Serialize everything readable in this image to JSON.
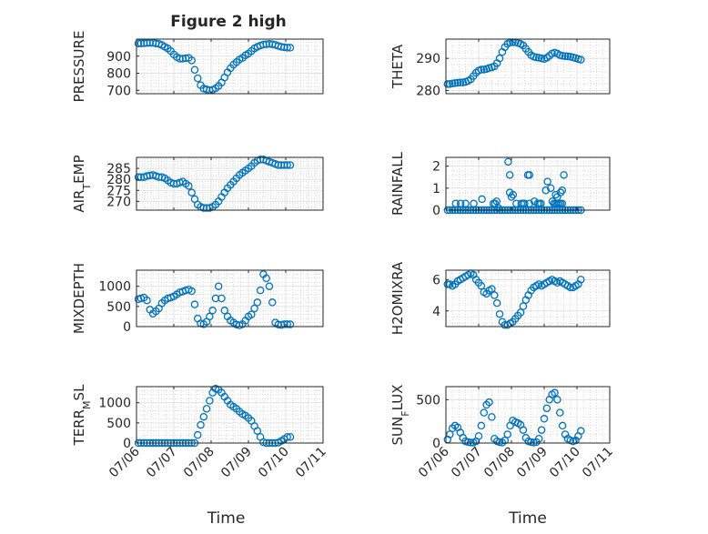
{
  "figure": {
    "title": "Figure 2 high"
  },
  "chart_data": [
    {
      "type": "scatter",
      "title": "Figure 2 high",
      "ylabel": "PRESSURE",
      "ylim": [
        680,
        1000
      ],
      "yticks": [
        700,
        800,
        900
      ],
      "grid": true,
      "minor_grid": true,
      "marker": "open-circle",
      "color": "#0072BD",
      "series": [
        {
          "x": [
            0.05,
            0.12,
            0.2,
            0.28,
            0.36,
            0.44,
            0.52,
            0.6,
            0.68,
            0.76,
            0.84,
            0.92,
            1.0,
            1.08,
            1.16,
            1.24,
            1.32,
            1.4,
            1.48,
            1.56,
            1.64,
            1.72,
            1.8,
            1.88,
            1.96,
            2.04,
            2.12,
            2.2,
            2.28,
            2.36,
            2.44,
            2.52,
            2.6,
            2.68,
            2.76,
            2.84,
            2.92,
            3.0,
            3.08,
            3.16,
            3.24,
            3.32,
            3.4,
            3.48,
            3.56,
            3.64,
            3.72,
            3.8,
            3.88,
            3.96,
            4.04,
            4.12
          ],
          "y": [
            975,
            975,
            976,
            977,
            978,
            978,
            975,
            972,
            965,
            955,
            945,
            930,
            910,
            895,
            885,
            885,
            888,
            890,
            875,
            820,
            770,
            730,
            710,
            705,
            700,
            703,
            712,
            725,
            745,
            775,
            805,
            830,
            850,
            865,
            880,
            890,
            905,
            915,
            930,
            945,
            955,
            962,
            968,
            970,
            972,
            970,
            966,
            960,
            955,
            952,
            950,
            950
          ]
        }
      ]
    },
    {
      "type": "scatter",
      "ylabel": "THETA",
      "ylim": [
        279,
        296
      ],
      "yticks": [
        280,
        290
      ],
      "grid": true,
      "minor_grid": true,
      "marker": "open-circle",
      "color": "#0072BD",
      "series": [
        {
          "x": [
            0.05,
            0.12,
            0.2,
            0.28,
            0.36,
            0.44,
            0.52,
            0.6,
            0.68,
            0.76,
            0.84,
            0.92,
            1.0,
            1.08,
            1.16,
            1.24,
            1.32,
            1.4,
            1.48,
            1.56,
            1.64,
            1.72,
            1.8,
            1.88,
            1.96,
            2.04,
            2.12,
            2.2,
            2.28,
            2.36,
            2.44,
            2.52,
            2.6,
            2.68,
            2.76,
            2.84,
            2.92,
            3.0,
            3.08,
            3.16,
            3.24,
            3.32,
            3.4,
            3.48,
            3.56,
            3.64,
            3.72,
            3.8,
            3.88,
            3.96,
            4.04,
            4.12
          ],
          "y": [
            282,
            282,
            282.2,
            282.3,
            282.4,
            282.5,
            282.5,
            282.7,
            283,
            283.5,
            284.5,
            285.5,
            286.2,
            286.5,
            286.5,
            286.7,
            287,
            287.2,
            287.5,
            288.5,
            290,
            292,
            293.5,
            294.5,
            295,
            295,
            295,
            294.8,
            294.5,
            294,
            293,
            292,
            291,
            290.5,
            290.3,
            290.2,
            290,
            289.8,
            290.2,
            290.8,
            291.5,
            291.8,
            291.5,
            291,
            290.8,
            290.7,
            290.6,
            290.5,
            290.3,
            290.1,
            289.8,
            289.6
          ]
        }
      ]
    },
    {
      "type": "scatter",
      "ylabel": "AIR_TEMP",
      "ylim": [
        266,
        290
      ],
      "yticks": [
        270,
        275,
        280,
        285
      ],
      "grid": true,
      "minor_grid": true,
      "marker": "open-circle",
      "color": "#0072BD",
      "series": [
        {
          "x": [
            0.05,
            0.12,
            0.2,
            0.28,
            0.36,
            0.44,
            0.52,
            0.6,
            0.68,
            0.76,
            0.84,
            0.92,
            1.0,
            1.08,
            1.16,
            1.24,
            1.32,
            1.4,
            1.48,
            1.56,
            1.64,
            1.72,
            1.8,
            1.88,
            1.96,
            2.04,
            2.12,
            2.2,
            2.28,
            2.36,
            2.44,
            2.52,
            2.6,
            2.68,
            2.76,
            2.84,
            2.92,
            3.0,
            3.08,
            3.16,
            3.24,
            3.32,
            3.4,
            3.48,
            3.56,
            3.64,
            3.72,
            3.8,
            3.88,
            3.96,
            4.04,
            4.12
          ],
          "y": [
            281,
            281,
            281,
            281.5,
            281.8,
            282,
            281.5,
            281,
            281,
            280.5,
            279.5,
            278.5,
            278,
            278,
            278.5,
            279,
            278,
            277,
            274,
            271,
            268.5,
            267.5,
            267,
            267,
            267,
            267.5,
            268.5,
            270,
            272,
            274,
            276,
            277.5,
            279,
            280.5,
            282,
            283,
            284,
            285,
            286,
            287.5,
            288.5,
            289,
            289,
            288.5,
            288,
            287.5,
            287,
            286.5,
            286.5,
            286.5,
            286.5,
            286.5
          ]
        }
      ]
    },
    {
      "type": "scatter",
      "ylabel": "RAINFALL",
      "ylim": [
        0,
        2.4
      ],
      "yticks": [
        0,
        1,
        2
      ],
      "grid": true,
      "minor_grid": true,
      "marker": "open-circle",
      "color": "#0072BD",
      "series": [
        {
          "x": [
            0.05,
            0.12,
            0.2,
            0.28,
            0.36,
            0.44,
            0.52,
            0.6,
            0.68,
            0.76,
            0.84,
            0.92,
            1.0,
            1.08,
            1.16,
            1.24,
            1.32,
            1.4,
            1.48,
            1.56,
            1.64,
            1.72,
            1.8,
            1.88,
            1.96,
            2.04,
            2.12,
            2.2,
            2.28,
            2.36,
            2.44,
            2.52,
            2.6,
            2.68,
            2.76,
            2.84,
            2.92,
            3.0,
            3.08,
            3.16,
            3.24,
            3.32,
            3.4,
            3.48,
            3.56,
            3.64,
            3.72,
            3.8,
            3.88,
            3.96,
            4.04,
            4.12,
            1.9,
            1.95,
            2.0,
            2.5,
            2.55,
            3.05,
            3.1,
            3.2,
            3.35,
            3.4,
            3.45,
            3.5,
            3.55,
            3.6,
            0.3,
            0.45,
            0.6,
            0.85,
            1.1,
            1.45,
            1.5,
            1.55,
            1.6,
            1.95,
            2.05,
            2.15,
            2.3,
            2.35,
            2.4,
            2.55,
            2.7,
            2.8,
            2.85,
            2.9,
            3.25,
            3.3,
            3.35,
            3.4,
            3.5,
            3.55
          ],
          "y": [
            0,
            0,
            0,
            0,
            0,
            0,
            0,
            0,
            0,
            0,
            0,
            0,
            0,
            0,
            0,
            0,
            0,
            0,
            0,
            0,
            0,
            0,
            0,
            0,
            0,
            0,
            0,
            0,
            0,
            0,
            0,
            0,
            0,
            0,
            0,
            0,
            0,
            0,
            0,
            0,
            0,
            0,
            0,
            0,
            0,
            0,
            0,
            0,
            0,
            0,
            0,
            0,
            2.2,
            1.6,
            0.6,
            1.6,
            1.6,
            0.9,
            1.3,
            1.0,
            0.7,
            0.6,
            0.3,
            0.8,
            0.9,
            1.6,
            0.3,
            0.3,
            0.3,
            0.3,
            0.5,
            0.3,
            0.3,
            0.4,
            0.1,
            0.8,
            0.7,
            0.3,
            0.3,
            0.3,
            0.3,
            0.3,
            0.4,
            0.3,
            0.3,
            0.3,
            0.4,
            0.3,
            0.3,
            0.3,
            0.3,
            0.3
          ]
        }
      ]
    },
    {
      "type": "scatter",
      "ylabel": "MIXDEPTH",
      "ylim": [
        0,
        1400
      ],
      "yticks": [
        0,
        500,
        1000
      ],
      "grid": true,
      "minor_grid": true,
      "marker": "open-circle",
      "color": "#0072BD",
      "series": [
        {
          "x": [
            0.05,
            0.12,
            0.2,
            0.28,
            0.36,
            0.44,
            0.52,
            0.6,
            0.68,
            0.76,
            0.84,
            0.92,
            1.0,
            1.08,
            1.16,
            1.24,
            1.32,
            1.4,
            1.48,
            1.56,
            1.64,
            1.72,
            1.8,
            1.88,
            1.96,
            2.04,
            2.12,
            2.2,
            2.28,
            2.36,
            2.44,
            2.52,
            2.6,
            2.68,
            2.76,
            2.84,
            2.92,
            3.0,
            3.08,
            3.16,
            3.24,
            3.32,
            3.4,
            3.48,
            3.56,
            3.64,
            3.72,
            3.8,
            3.88,
            3.96,
            4.04,
            4.12
          ],
          "y": [
            680,
            700,
            720,
            650,
            420,
            320,
            380,
            450,
            580,
            650,
            700,
            720,
            750,
            800,
            850,
            870,
            900,
            920,
            880,
            550,
            200,
            80,
            60,
            120,
            250,
            400,
            700,
            1000,
            700,
            400,
            250,
            150,
            100,
            50,
            30,
            60,
            150,
            250,
            300,
            450,
            600,
            900,
            1300,
            1200,
            1000,
            600,
            100,
            50,
            40,
            60,
            60,
            55
          ]
        }
      ]
    },
    {
      "type": "scatter",
      "ylabel": "H2OMIXRA",
      "ylim": [
        3,
        6.6
      ],
      "yticks": [
        4,
        6
      ],
      "grid": true,
      "minor_grid": true,
      "marker": "open-circle",
      "color": "#0072BD",
      "series": [
        {
          "x": [
            0.05,
            0.12,
            0.2,
            0.28,
            0.36,
            0.44,
            0.52,
            0.6,
            0.68,
            0.76,
            0.84,
            0.92,
            1.0,
            1.08,
            1.16,
            1.24,
            1.32,
            1.4,
            1.48,
            1.56,
            1.64,
            1.72,
            1.8,
            1.88,
            1.96,
            2.04,
            2.12,
            2.2,
            2.28,
            2.36,
            2.44,
            2.52,
            2.6,
            2.68,
            2.76,
            2.84,
            2.92,
            3.0,
            3.08,
            3.16,
            3.24,
            3.32,
            3.4,
            3.48,
            3.56,
            3.64,
            3.72,
            3.8,
            3.88,
            3.96,
            4.04,
            4.12
          ],
          "y": [
            5.7,
            5.7,
            5.6,
            5.7,
            5.9,
            6.0,
            6.1,
            6.2,
            6.3,
            6.4,
            6.3,
            6.0,
            5.8,
            5.6,
            5.2,
            5.1,
            5.3,
            5.4,
            5.0,
            4.5,
            3.8,
            3.3,
            3.1,
            3.1,
            3.2,
            3.3,
            3.5,
            3.7,
            3.9,
            4.3,
            4.7,
            5.0,
            5.3,
            5.5,
            5.6,
            5.7,
            5.6,
            5.7,
            5.8,
            5.9,
            6.0,
            5.9,
            5.8,
            5.9,
            5.8,
            5.7,
            5.6,
            5.5,
            5.5,
            5.6,
            5.7,
            6.0
          ]
        }
      ]
    },
    {
      "type": "scatter",
      "ylabel": "TERR_MSL",
      "xlabel": "Time",
      "xticklabels": [
        "07/06",
        "07/07",
        "07/08",
        "07/09",
        "07/10",
        "07/11"
      ],
      "xlim": [
        0,
        5
      ],
      "ylim": [
        0,
        1400
      ],
      "yticks": [
        0,
        500,
        1000
      ],
      "grid": true,
      "minor_grid": true,
      "marker": "open-circle",
      "color": "#0072BD",
      "series": [
        {
          "x": [
            0.05,
            0.12,
            0.2,
            0.28,
            0.36,
            0.44,
            0.52,
            0.6,
            0.68,
            0.76,
            0.84,
            0.92,
            1.0,
            1.08,
            1.16,
            1.24,
            1.32,
            1.4,
            1.48,
            1.56,
            1.64,
            1.72,
            1.8,
            1.88,
            1.96,
            2.04,
            2.12,
            2.2,
            2.28,
            2.36,
            2.44,
            2.52,
            2.6,
            2.68,
            2.76,
            2.84,
            2.92,
            3.0,
            3.08,
            3.16,
            3.24,
            3.32,
            3.4,
            3.48,
            3.56,
            3.64,
            3.72,
            3.8,
            3.88,
            3.96,
            4.04,
            4.12
          ],
          "y": [
            0,
            0,
            0,
            0,
            0,
            0,
            0,
            0,
            0,
            0,
            0,
            0,
            0,
            0,
            0,
            0,
            0,
            0,
            0,
            0,
            200,
            450,
            650,
            850,
            1050,
            1250,
            1350,
            1320,
            1250,
            1150,
            1050,
            950,
            900,
            850,
            780,
            720,
            680,
            620,
            550,
            420,
            300,
            150,
            20,
            0,
            0,
            0,
            0,
            10,
            50,
            100,
            150,
            150
          ]
        }
      ]
    },
    {
      "type": "scatter",
      "ylabel": "SUN_FLUX",
      "xlabel": "Time",
      "xticklabels": [
        "07/06",
        "07/07",
        "07/08",
        "07/09",
        "07/10",
        "07/11"
      ],
      "xlim": [
        0,
        5
      ],
      "ylim": [
        0,
        650
      ],
      "yticks": [
        0,
        500
      ],
      "grid": true,
      "minor_grid": true,
      "marker": "open-circle",
      "color": "#0072BD",
      "series": [
        {
          "x": [
            0.05,
            0.12,
            0.2,
            0.28,
            0.36,
            0.44,
            0.52,
            0.6,
            0.68,
            0.76,
            0.84,
            0.92,
            1.0,
            1.08,
            1.16,
            1.24,
            1.32,
            1.4,
            1.48,
            1.56,
            1.64,
            1.72,
            1.8,
            1.88,
            1.96,
            2.04,
            2.12,
            2.2,
            2.28,
            2.36,
            2.44,
            2.52,
            2.6,
            2.68,
            2.76,
            2.84,
            2.92,
            3.0,
            3.08,
            3.16,
            3.24,
            3.32,
            3.4,
            3.48,
            3.56,
            3.64,
            3.72,
            3.8,
            3.88,
            3.96,
            4.04,
            4.12
          ],
          "y": [
            40,
            100,
            170,
            200,
            180,
            120,
            60,
            20,
            10,
            5,
            5,
            20,
            80,
            200,
            350,
            440,
            470,
            300,
            50,
            20,
            10,
            5,
            30,
            100,
            200,
            260,
            240,
            230,
            210,
            150,
            60,
            20,
            10,
            5,
            10,
            50,
            150,
            280,
            400,
            500,
            560,
            580,
            500,
            350,
            200,
            100,
            50,
            30,
            20,
            30,
            80,
            140
          ]
        }
      ]
    }
  ]
}
